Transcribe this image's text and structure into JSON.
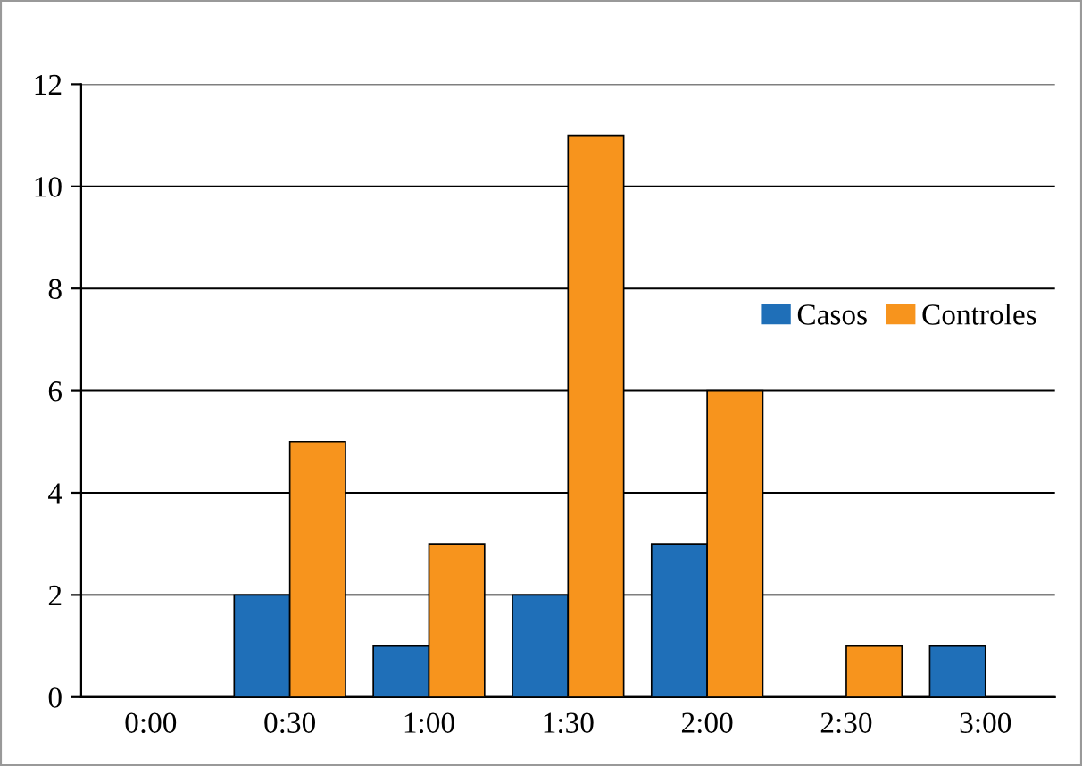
{
  "chart_data": {
    "type": "bar",
    "categories": [
      "0:00",
      "0:30",
      "1:00",
      "1:30",
      "2:00",
      "2:30",
      "3:00"
    ],
    "series": [
      {
        "name": "Casos",
        "color": "#1f6fb8",
        "values": [
          0,
          2,
          1,
          2,
          3,
          0,
          1
        ]
      },
      {
        "name": "Controles",
        "color": "#f7941d",
        "values": [
          0,
          5,
          3,
          11,
          6,
          1,
          0
        ]
      }
    ],
    "ylim": [
      0,
      12
    ],
    "yticks": [
      0,
      2,
      4,
      6,
      8,
      10,
      12
    ],
    "grid": "y",
    "legend": "right"
  }
}
